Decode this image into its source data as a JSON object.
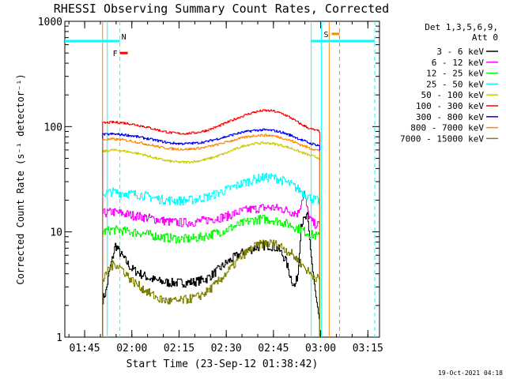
{
  "chart_data": {
    "type": "line",
    "title": "RHESSI Observing Summary Count Rates, Corrected",
    "xlabel": "Start Time (23-Sep-12 01:38:42)",
    "ylabel": "Corrected Count Rate (s⁻¹ detector⁻¹)",
    "y_scale": "log",
    "ylim": [
      1,
      1000
    ],
    "xlim_minutes_after_0138": [
      0,
      100
    ],
    "x_ticks": [
      {
        "label": "01:45",
        "minutes": 6.3
      },
      {
        "label": "02:00",
        "minutes": 21.3
      },
      {
        "label": "02:15",
        "minutes": 36.3
      },
      {
        "label": "02:30",
        "minutes": 51.3
      },
      {
        "label": "02:45",
        "minutes": 66.3
      },
      {
        "label": "03:00",
        "minutes": 81.3
      },
      {
        "label": "03:15",
        "minutes": 96.3
      }
    ],
    "y_ticks": [
      {
        "label": "1",
        "value": 1
      },
      {
        "label": "10",
        "value": 10
      },
      {
        "label": "100",
        "value": 100
      },
      {
        "label": "1000",
        "value": 1000
      }
    ],
    "legend": {
      "placement": "top-right",
      "header": [
        "Det 1,3,5,6,9,",
        "Att 0"
      ]
    },
    "series": [
      {
        "name": "3 - 6 keV",
        "color": "#000000",
        "x": [
          12,
          13,
          14,
          16,
          18,
          21,
          24,
          27,
          30,
          33,
          36,
          39,
          42,
          45,
          48,
          51,
          54,
          57,
          60,
          62,
          64,
          66,
          68,
          70,
          72,
          73,
          74,
          75,
          77,
          79,
          81
        ],
        "y": [
          2.3,
          2.7,
          4,
          7.5,
          6,
          4.5,
          4,
          3.6,
          3.4,
          3.3,
          3.3,
          3.3,
          3.4,
          3.6,
          4.2,
          5,
          5.8,
          6.5,
          7,
          7.3,
          7.5,
          7.3,
          6.8,
          5.5,
          3.5,
          3,
          4,
          12,
          14,
          3.5,
          1.2
        ]
      },
      {
        "name": "6 - 12 keV",
        "color": "#ff00ff",
        "x": [
          12,
          15,
          18,
          21,
          24,
          27,
          30,
          33,
          36,
          39,
          42,
          45,
          48,
          51,
          54,
          57,
          60,
          63,
          66,
          69,
          72,
          74,
          75,
          76,
          77,
          78,
          79,
          81
        ],
        "y": [
          15,
          15.5,
          15,
          14.5,
          14,
          13.5,
          13,
          12.5,
          12.3,
          12.3,
          12.5,
          13,
          13.5,
          14,
          15,
          16,
          16.5,
          17,
          17,
          16.5,
          15.5,
          15,
          19,
          24,
          16,
          13,
          12,
          11.5
        ]
      },
      {
        "name": "12 - 25 keV",
        "color": "#00ff00",
        "x": [
          12,
          15,
          18,
          21,
          24,
          27,
          30,
          33,
          36,
          39,
          42,
          45,
          48,
          51,
          54,
          57,
          60,
          63,
          66,
          69,
          72,
          75,
          78,
          81
        ],
        "y": [
          10,
          10.5,
          10.3,
          10,
          9.8,
          9.4,
          9,
          8.8,
          8.6,
          8.6,
          8.8,
          9.2,
          9.8,
          10.4,
          11.3,
          12.3,
          13,
          13.3,
          13,
          12.4,
          11.5,
          10.5,
          9.5,
          9
        ]
      },
      {
        "name": "25 - 50 keV",
        "color": "#00ffff",
        "x": [
          12,
          15,
          18,
          21,
          24,
          27,
          30,
          33,
          36,
          39,
          42,
          45,
          48,
          51,
          54,
          57,
          60,
          63,
          66,
          69,
          72,
          75,
          78,
          81
        ],
        "y": [
          23,
          24,
          23.5,
          23,
          22.5,
          21.5,
          20.5,
          20,
          19.8,
          20,
          20.5,
          21.5,
          23,
          25,
          27,
          29.5,
          31.5,
          33,
          33,
          31,
          28,
          24.5,
          21,
          19.5
        ]
      },
      {
        "name": "50 - 100 keV",
        "color": "#cccc00",
        "x": [
          12,
          15,
          18,
          21,
          24,
          27,
          30,
          33,
          36,
          39,
          42,
          45,
          48,
          51,
          54,
          57,
          60,
          63,
          66,
          69,
          72,
          75,
          78,
          81
        ],
        "y": [
          58,
          60,
          59,
          57,
          55,
          52,
          49,
          47,
          46,
          46,
          47,
          49,
          52,
          56,
          61,
          66,
          69,
          70,
          69,
          66,
          62,
          57,
          53,
          50
        ]
      },
      {
        "name": "100 - 300 keV",
        "color": "#ff0000",
        "x": [
          12,
          15,
          18,
          21,
          24,
          27,
          30,
          33,
          36,
          39,
          42,
          45,
          48,
          51,
          54,
          57,
          60,
          63,
          66,
          69,
          72,
          75,
          78,
          81
        ],
        "y": [
          108,
          110,
          109,
          106,
          102,
          97,
          92,
          88,
          86,
          86,
          88,
          92,
          99,
          108,
          118,
          128,
          137,
          142,
          141,
          133,
          120,
          105,
          95,
          90
        ]
      },
      {
        "name": "300 - 800 keV",
        "color": "#0000ff",
        "x": [
          12,
          15,
          18,
          21,
          24,
          27,
          30,
          33,
          36,
          39,
          42,
          45,
          48,
          51,
          54,
          57,
          60,
          63,
          66,
          69,
          72,
          75,
          78,
          81
        ],
        "y": [
          84,
          85,
          84,
          82,
          79,
          76,
          73,
          70,
          69,
          69,
          70,
          72,
          76,
          80,
          85,
          89,
          92,
          93,
          92,
          88,
          82,
          75,
          69,
          66
        ]
      },
      {
        "name": "800 - 7000 keV",
        "color": "#ff8800",
        "x": [
          12,
          15,
          18,
          21,
          24,
          27,
          30,
          33,
          36,
          39,
          42,
          45,
          48,
          51,
          54,
          57,
          60,
          63,
          66,
          69,
          72,
          75,
          78,
          81
        ],
        "y": [
          75,
          76,
          75,
          73,
          70,
          67,
          64,
          62,
          61,
          61,
          62,
          64,
          67,
          71,
          75,
          79,
          82,
          83,
          82,
          78,
          73,
          67,
          62,
          59
        ]
      },
      {
        "name": "7000 - 15000 keV",
        "color": "#808000",
        "x": [
          12,
          13,
          14,
          16,
          18,
          21,
          24,
          27,
          30,
          33,
          36,
          39,
          42,
          45,
          48,
          51,
          54,
          57,
          60,
          63,
          66,
          69,
          72,
          75,
          78,
          81
        ],
        "y": [
          3.5,
          3.8,
          4.5,
          5,
          4.5,
          3.5,
          3,
          2.6,
          2.3,
          2.2,
          2.2,
          2.3,
          2.4,
          2.7,
          3.2,
          4,
          5,
          6.2,
          7.2,
          7.8,
          7.8,
          7.2,
          6.2,
          5,
          4,
          3.5
        ]
      }
    ],
    "flag_bars": [
      {
        "label": "N",
        "color": "#00ffff",
        "segments": [
          [
            0,
            17.5
          ],
          [
            78.3,
            98.5
          ]
        ],
        "value": 650
      },
      {
        "label": "F",
        "color": "#ff0000",
        "segments": [
          [
            17.5,
            20
          ]
        ],
        "value": 500
      },
      {
        "label": "S",
        "color": "#ff8800",
        "segments": [
          [
            84.8,
            87.3
          ]
        ],
        "value": 760
      }
    ],
    "vertical_lines": [
      {
        "minutes": 13.5,
        "color": "#00ffff",
        "style": "solid"
      },
      {
        "minutes": 17.5,
        "color": "#00ffff",
        "style": "dashed"
      },
      {
        "minutes": 12,
        "color": "#ff8800",
        "style": "solid"
      },
      {
        "minutes": 78.3,
        "color": "#00ffff",
        "style": "solid"
      },
      {
        "minutes": 81.5,
        "color": "#00ffff",
        "style": "solid"
      },
      {
        "minutes": 84,
        "color": "#ff8800",
        "style": "solid"
      },
      {
        "minutes": 87.3,
        "color": "#ff8800",
        "style": "dashed"
      },
      {
        "minutes": 98.5,
        "color": "#00ffff",
        "style": "dashed"
      }
    ]
  },
  "footer": {
    "timestamp": "19-Oct-2021 04:18"
  }
}
